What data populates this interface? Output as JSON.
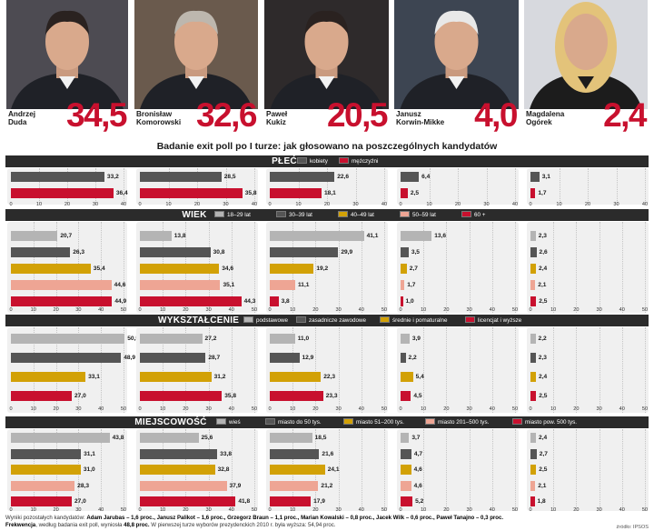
{
  "title": "Badanie exit poll po I turze: jak głosowano na poszczególnych kandydatów",
  "candidates": [
    {
      "first": "Andrzej",
      "last": "Duda",
      "pct": "34,5"
    },
    {
      "first": "Bronisław",
      "last": "Komorowski",
      "pct": "32,6"
    },
    {
      "first": "Paweł",
      "last": "Kukiz",
      "pct": "20,5"
    },
    {
      "first": "Janusz",
      "last": "Korwin-Mikke",
      "pct": "4,0"
    },
    {
      "first": "Magdalena",
      "last": "Ogórek",
      "pct": "2,4"
    }
  ],
  "colors": {
    "gray": "#b4b4b4",
    "dark": "#555555",
    "gold": "#d2a106",
    "salmon": "#eea594",
    "red": "#c8102e"
  },
  "chart_data": [
    {
      "type": "bar",
      "orientation": "horizontal",
      "title": "PŁEĆ",
      "series": [
        {
          "name": "kobiety",
          "color": "dark",
          "values": [
            33.2,
            28.5,
            22.6,
            6.4,
            3.1
          ]
        },
        {
          "name": "mężczyźni",
          "color": "red",
          "values": [
            36.4,
            35.8,
            18.1,
            2.5,
            1.7
          ]
        }
      ],
      "categories": [
        "Andrzej Duda",
        "Bronisław Komorowski",
        "Paweł Kukiz",
        "Janusz Korwin-Mikke",
        "Magdalena Ogórek"
      ],
      "xlim": [
        0,
        40
      ],
      "ticks": [
        0,
        10,
        20,
        30,
        40
      ]
    },
    {
      "type": "bar",
      "orientation": "horizontal",
      "title": "WIEK",
      "series": [
        {
          "name": "18–29 lat",
          "color": "gray",
          "values": [
            20.7,
            13.8,
            41.1,
            13.6,
            2.3
          ]
        },
        {
          "name": "30–39 lat",
          "color": "dark",
          "values": [
            26.3,
            30.8,
            29.9,
            3.5,
            2.6
          ]
        },
        {
          "name": "40–49 lat",
          "color": "gold",
          "values": [
            35.4,
            34.6,
            19.2,
            2.7,
            2.4
          ]
        },
        {
          "name": "50–59 lat",
          "color": "salmon",
          "values": [
            44.6,
            35.1,
            11.1,
            1.7,
            2.1
          ]
        },
        {
          "name": "60 +",
          "color": "red",
          "values": [
            44.9,
            44.3,
            3.8,
            1.0,
            2.5
          ]
        }
      ],
      "categories": [
        "Andrzej Duda",
        "Bronisław Komorowski",
        "Paweł Kukiz",
        "Janusz Korwin-Mikke",
        "Magdalena Ogórek"
      ],
      "xlim": [
        0,
        50
      ],
      "ticks": [
        0,
        10,
        20,
        30,
        40,
        50
      ]
    },
    {
      "type": "bar",
      "orientation": "horizontal",
      "title": "WYKSZTAŁCENIE",
      "series": [
        {
          "name": "podstawowe",
          "color": "gray",
          "values": [
            50.5,
            27.2,
            11.0,
            3.9,
            2.2
          ]
        },
        {
          "name": "zasadnicze zawodowe",
          "color": "dark",
          "values": [
            48.9,
            28.7,
            12.9,
            2.2,
            2.3
          ]
        },
        {
          "name": "średnie i pomaturalne",
          "color": "gold",
          "values": [
            33.1,
            31.2,
            22.3,
            5.4,
            2.4
          ]
        },
        {
          "name": "licencjat i wyższe",
          "color": "red",
          "values": [
            27.0,
            35.8,
            23.3,
            4.5,
            2.5
          ]
        }
      ],
      "categories": [
        "Andrzej Duda",
        "Bronisław Komorowski",
        "Paweł Kukiz",
        "Janusz Korwin-Mikke",
        "Magdalena Ogórek"
      ],
      "xlim": [
        0,
        50
      ],
      "ticks": [
        0,
        10,
        20,
        30,
        40,
        50
      ]
    },
    {
      "type": "bar",
      "orientation": "horizontal",
      "title": "MIEJSCOWOŚĆ",
      "series": [
        {
          "name": "wieś",
          "color": "gray",
          "values": [
            43.8,
            25.6,
            18.5,
            3.7,
            2.4
          ]
        },
        {
          "name": "miasto do 50 tys.",
          "color": "dark",
          "values": [
            31.1,
            33.8,
            21.6,
            4.7,
            2.7
          ]
        },
        {
          "name": "miasto 51–200 tys.",
          "color": "gold",
          "values": [
            31.0,
            32.8,
            24.1,
            4.6,
            2.5
          ]
        },
        {
          "name": "miasto 201–500 tys.",
          "color": "salmon",
          "values": [
            28.3,
            37.9,
            21.2,
            4.6,
            2.1
          ]
        },
        {
          "name": "miasto pow. 500 tys.",
          "color": "red",
          "values": [
            27.0,
            41.8,
            17.9,
            5.2,
            1.8
          ]
        }
      ],
      "categories": [
        "Andrzej Duda",
        "Bronisław Komorowski",
        "Paweł Kukiz",
        "Janusz Korwin-Mikke",
        "Magdalena Ogórek"
      ],
      "xlim": [
        0,
        50
      ],
      "ticks": [
        0,
        10,
        20,
        30,
        40,
        50
      ]
    }
  ],
  "footnote": {
    "line1_prefix": "Wyniki pozostałych kandydatów:",
    "line1_names": "Adam Jarubas – 1,6 proc., Janusz Palikot – 1,6 proc., Grzegorz Braun – 1,1 proc., Marian Kowalski – 0,8 proc., Jacek Wilk – 0,6 proc., Paweł Tanajno – 0,3 proc.",
    "line2_label": "Frekwencja",
    "line2_a": ", według badania exit poll, wyniosła",
    "line2_value": "48,8 proc.",
    "line2_b": "W pierwszej turze wyborów prezydenckich 2010 r. była wyższa: 54,94 proc."
  },
  "source": "źródło: IPSOS"
}
